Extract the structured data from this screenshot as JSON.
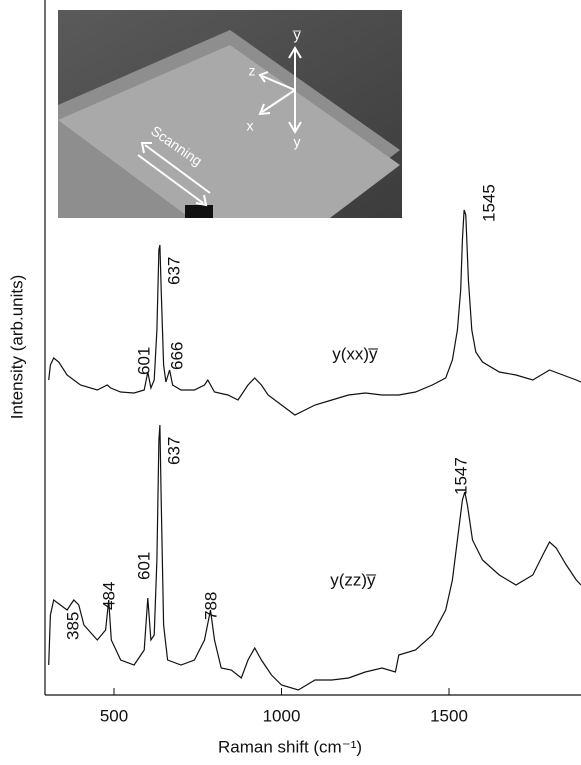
{
  "chart_data": {
    "type": "line",
    "xlabel": "Raman shift (cm⁻¹)",
    "ylabel": "Intensity (arb.units)",
    "xlim": [
      294,
      1894
    ],
    "xticks": [
      500,
      1000,
      1500
    ],
    "ylim": [
      0,
      695
    ],
    "series": [
      {
        "name": "y(xx)y̅",
        "color": "#111111",
        "x": [
          305,
          310,
          320,
          335,
          360,
          400,
          450,
          480,
          490,
          520,
          560,
          590,
          601,
          610,
          620,
          628,
          634,
          637,
          641,
          648,
          655,
          666,
          675,
          700,
          740,
          770,
          780,
          800,
          840,
          870,
          900,
          920,
          940,
          960,
          1000,
          1040,
          1100,
          1150,
          1200,
          1250,
          1300,
          1350,
          1400,
          1450,
          1490,
          1510,
          1525,
          1535,
          1540,
          1545,
          1550,
          1558,
          1568,
          1580,
          1600,
          1650,
          1700,
          1750,
          1800,
          1840,
          1880,
          1894
        ],
        "values": [
          315,
          330,
          337,
          333,
          320,
          310,
          305,
          310,
          307,
          303,
          302,
          305,
          323,
          307,
          315,
          365,
          445,
          450,
          405,
          330,
          313,
          325,
          310,
          305,
          305,
          310,
          315,
          303,
          300,
          295,
          310,
          317,
          310,
          300,
          290,
          280,
          290,
          295,
          300,
          302,
          300,
          300,
          303,
          310,
          317,
          335,
          365,
          405,
          455,
          485,
          480,
          415,
          365,
          343,
          333,
          323,
          320,
          315,
          325,
          320,
          315,
          313
        ]
      },
      {
        "name": "y(zz)y̅",
        "color": "#111111",
        "x": [
          305,
          310,
          320,
          340,
          360,
          380,
          395,
          410,
          450,
          475,
          484,
          492,
          520,
          560,
          590,
          601,
          610,
          620,
          628,
          634,
          637,
          641,
          648,
          660,
          700,
          740,
          770,
          788,
          800,
          820,
          850,
          880,
          900,
          920,
          940,
          970,
          1000,
          1050,
          1100,
          1150,
          1200,
          1250,
          1300,
          1340,
          1350,
          1400,
          1450,
          1490,
          1510,
          1525,
          1540,
          1547,
          1555,
          1570,
          1600,
          1650,
          1700,
          1750,
          1780,
          1800,
          1820,
          1850,
          1880,
          1894
        ],
        "values": [
          30,
          80,
          95,
          90,
          85,
          95,
          90,
          70,
          55,
          65,
          95,
          55,
          35,
          30,
          45,
          97,
          55,
          60,
          135,
          255,
          270,
          195,
          70,
          35,
          30,
          35,
          55,
          85,
          55,
          27,
          25,
          17,
          35,
          47,
          35,
          20,
          10,
          5,
          15,
          15,
          17,
          23,
          27,
          23,
          40,
          45,
          60,
          85,
          115,
          155,
          195,
          203,
          190,
          155,
          135,
          120,
          110,
          120,
          140,
          153,
          147,
          130,
          115,
          110
        ]
      }
    ],
    "series_labels": [
      {
        "series": 0,
        "x": 1219,
        "y": 340
      },
      {
        "series": 1,
        "x": 1213,
        "y": 114
      }
    ],
    "annotations": [
      {
        "text": "601",
        "x": 593,
        "y": 320
      },
      {
        "text": "637",
        "x": 682,
        "y": 410
      },
      {
        "text": "666",
        "x": 691,
        "y": 325
      },
      {
        "text": "1545",
        "x": 1622,
        "y": 473
      },
      {
        "text": "385",
        "x": 381,
        "y": 55
      },
      {
        "text": "484",
        "x": 488,
        "y": 85
      },
      {
        "text": "601",
        "x": 593,
        "y": 115
      },
      {
        "text": "637",
        "x": 682,
        "y": 230
      },
      {
        "text": "788",
        "x": 792,
        "y": 75
      },
      {
        "text": "1547",
        "x": 1539,
        "y": 200
      }
    ]
  },
  "inset": {
    "axis_labels": [
      "y̅",
      "z",
      "x",
      "y"
    ],
    "scan_label": "Scanning"
  }
}
